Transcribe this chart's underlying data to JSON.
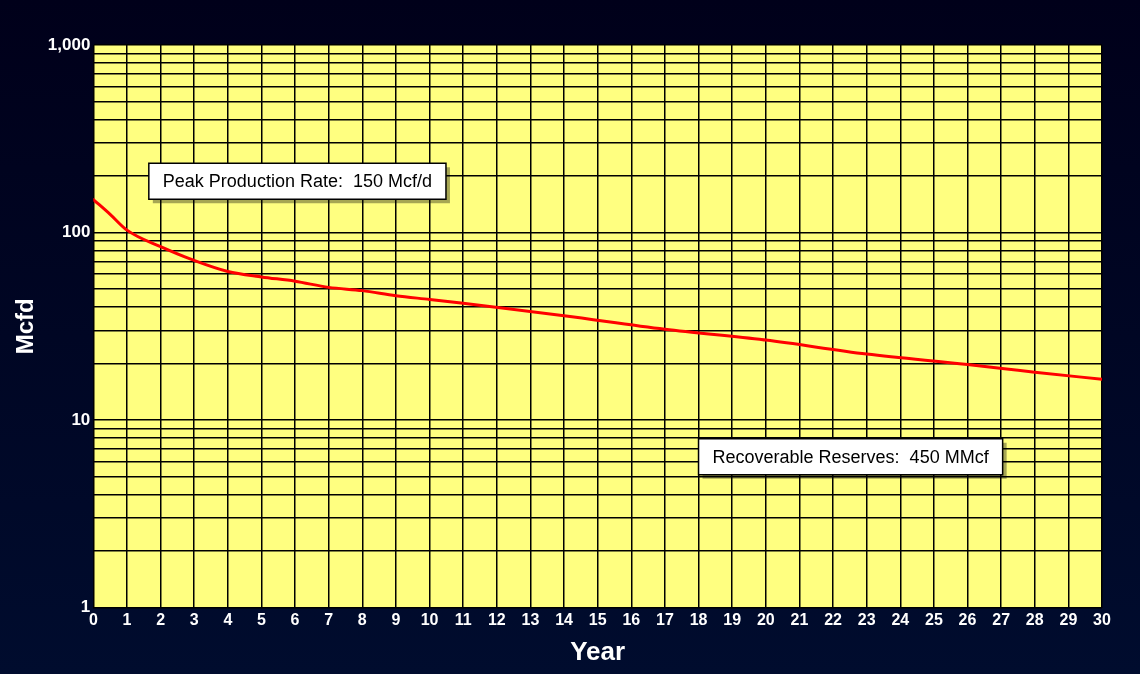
{
  "chart_data": {
    "type": "line",
    "xlabel": "Year",
    "ylabel": "Mcfd",
    "x": [
      0,
      0.5,
      1,
      2,
      3,
      4,
      5,
      6,
      7,
      8,
      9,
      10,
      11,
      14,
      17,
      20,
      23,
      26,
      28,
      30
    ],
    "series": [
      {
        "color": "#ff0000",
        "values": [
          150,
          125,
          103,
          84,
          71,
          62,
          58,
          55,
          51,
          49,
          46,
          44,
          42,
          36,
          30.5,
          26.7,
          22.5,
          19.8,
          18,
          16.5
        ]
      }
    ],
    "xlim": [
      0,
      30
    ],
    "xticks": [
      0,
      1,
      2,
      3,
      4,
      5,
      6,
      7,
      8,
      9,
      10,
      11,
      12,
      13,
      14,
      15,
      16,
      17,
      18,
      19,
      20,
      21,
      22,
      23,
      24,
      25,
      26,
      27,
      28,
      29,
      30
    ],
    "log": "y",
    "ylim": [
      1,
      1000
    ],
    "yticks": [
      1,
      {
        "value": 2,
        "label": null
      },
      {
        "value": 3,
        "label": null
      },
      {
        "value": 4,
        "label": null
      },
      {
        "value": 5,
        "label": null
      },
      {
        "value": 6,
        "label": null
      },
      {
        "value": 7,
        "label": null
      },
      {
        "value": 8,
        "label": null
      },
      {
        "value": 9,
        "label": null
      },
      10,
      {
        "value": 20,
        "label": null
      },
      {
        "value": 30,
        "label": null
      },
      {
        "value": 40,
        "label": null
      },
      {
        "value": 50,
        "label": null
      },
      {
        "value": 60,
        "label": null
      },
      {
        "value": 70,
        "label": null
      },
      {
        "value": 80,
        "label": null
      },
      {
        "value": 90,
        "label": null
      },
      100,
      {
        "value": 200,
        "label": null
      },
      {
        "value": 300,
        "label": null
      },
      {
        "value": 400,
        "label": null
      },
      {
        "value": 500,
        "label": null
      },
      {
        "value": 600,
        "label": null
      },
      {
        "value": 700,
        "label": null
      },
      {
        "value": 800,
        "label": null
      },
      {
        "value": 900,
        "label": null
      },
      {
        "value": 1000,
        "label": "1,000"
      }
    ],
    "grid": true,
    "legend": false,
    "marker": "none",
    "line_style": "solid",
    "annotations": [
      "Peak Production Rate:  150 Mcf/d",
      "Recoverable Reserves:  450 MMcf"
    ]
  }
}
